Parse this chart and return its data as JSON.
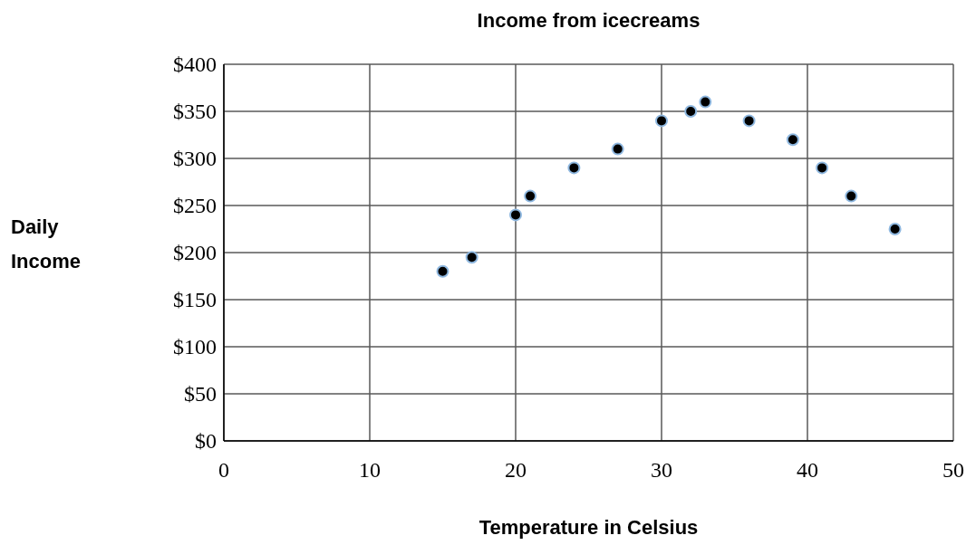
{
  "chart_data": {
    "type": "scatter",
    "title": "Income from icecreams",
    "xlabel": "Temperature in Celsius",
    "ylabel": "Daily Income",
    "x": [
      15,
      17,
      20,
      21,
      24,
      27,
      30,
      32,
      33,
      36,
      39,
      41,
      43,
      46
    ],
    "series": [
      {
        "color": "#000000",
        "values": [
          180,
          195,
          240,
          260,
          290,
          310,
          340,
          350,
          360,
          340,
          320,
          290,
          260,
          225
        ]
      }
    ],
    "xlim": [
      0,
      50
    ],
    "xticks": [
      0,
      10,
      20,
      30,
      40,
      50
    ],
    "ylim": [
      0,
      400
    ],
    "yticks": [
      {
        "value": 0,
        "label": "$0"
      },
      {
        "value": 50,
        "label": "$50"
      },
      {
        "value": 100,
        "label": "$100"
      },
      {
        "value": 150,
        "label": "$150"
      },
      {
        "value": 200,
        "label": "$200"
      },
      {
        "value": 250,
        "label": "$250"
      },
      {
        "value": 300,
        "label": "$300"
      },
      {
        "value": 350,
        "label": "$350"
      },
      {
        "value": 400,
        "label": "$400"
      }
    ],
    "grid": true,
    "marker": "circle"
  }
}
